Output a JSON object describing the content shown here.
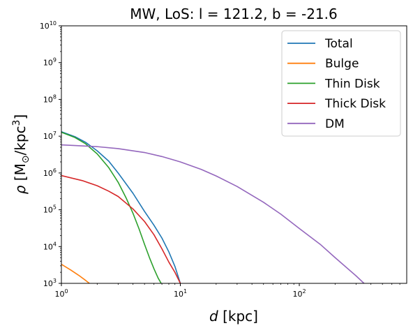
{
  "chart_data": {
    "type": "line",
    "title": "MW, LoS: l = 121.2, b = -21.6",
    "xlabel": {
      "symbol": "d",
      "unit": " [kpc]"
    },
    "ylabel": {
      "symbol": "ρ",
      "unit_prefix": " [M",
      "unit_sub": "⊙",
      "unit_mid": "/kpc",
      "unit_sup": "3",
      "unit_suffix": "]"
    },
    "x_scale": "log",
    "y_scale": "log",
    "xlim": [
      1,
      800
    ],
    "ylim": [
      1000,
      10000000000
    ],
    "x_ticks": [
      {
        "value": 1,
        "base": "10",
        "exp": "0"
      },
      {
        "value": 10,
        "base": "10",
        "exp": "1"
      },
      {
        "value": 100,
        "base": "10",
        "exp": "2"
      }
    ],
    "y_ticks": [
      {
        "value": 1000,
        "base": "10",
        "exp": "3"
      },
      {
        "value": 10000,
        "base": "10",
        "exp": "4"
      },
      {
        "value": 100000,
        "base": "10",
        "exp": "5"
      },
      {
        "value": 1000000,
        "base": "10",
        "exp": "6"
      },
      {
        "value": 10000000,
        "base": "10",
        "exp": "7"
      },
      {
        "value": 100000000,
        "base": "10",
        "exp": "8"
      },
      {
        "value": 1000000000,
        "base": "10",
        "exp": "9"
      },
      {
        "value": 10000000000,
        "base": "10",
        "exp": "10"
      }
    ],
    "grid": false,
    "legend_position": "top-right",
    "series": [
      {
        "name": "Total",
        "color": "#1f77b4",
        "x": [
          1,
          1.3,
          1.6,
          2,
          2.5,
          3,
          4,
          5,
          6,
          7,
          8,
          9,
          10
        ],
        "y": [
          13200000,
          9700000,
          6800000,
          4000000,
          2100000,
          1000000,
          280000,
          90000,
          38000,
          17000,
          7200,
          2900,
          1000
        ]
      },
      {
        "name": "Bulge",
        "color": "#ff7f0e",
        "x": [
          1,
          1.2,
          1.4,
          1.6,
          1.72
        ],
        "y": [
          3300,
          2300,
          1650,
          1200,
          1000
        ]
      },
      {
        "name": "Thin Disk",
        "color": "#2ca02c",
        "x": [
          1,
          1.3,
          1.6,
          2,
          2.5,
          3,
          3.5,
          4,
          4.5,
          5,
          5.5,
          6,
          6.5,
          6.9
        ],
        "y": [
          12800000,
          9200000,
          6200000,
          3300000,
          1400000,
          560000,
          210000,
          80000,
          30000,
          11500,
          5000,
          2500,
          1400,
          1000
        ]
      },
      {
        "name": "Thick Disk",
        "color": "#d62728",
        "x": [
          1,
          1.5,
          2,
          2.5,
          3,
          4,
          5,
          6,
          7,
          8,
          9,
          10
        ],
        "y": [
          850000,
          620000,
          450000,
          320000,
          230000,
          105000,
          48000,
          21000,
          8700,
          3800,
          2000,
          1000
        ]
      },
      {
        "name": "DM",
        "color": "#9467bd",
        "x": [
          1,
          2,
          3,
          5,
          7,
          10,
          15,
          20,
          30,
          50,
          70,
          100,
          150,
          200,
          300,
          350
        ],
        "y": [
          5800000,
          5200000,
          4600000,
          3600000,
          2800000,
          2000000,
          1250000,
          830000,
          430000,
          160000,
          76000,
          31000,
          11500,
          5000,
          1600,
          1000
        ]
      }
    ]
  }
}
